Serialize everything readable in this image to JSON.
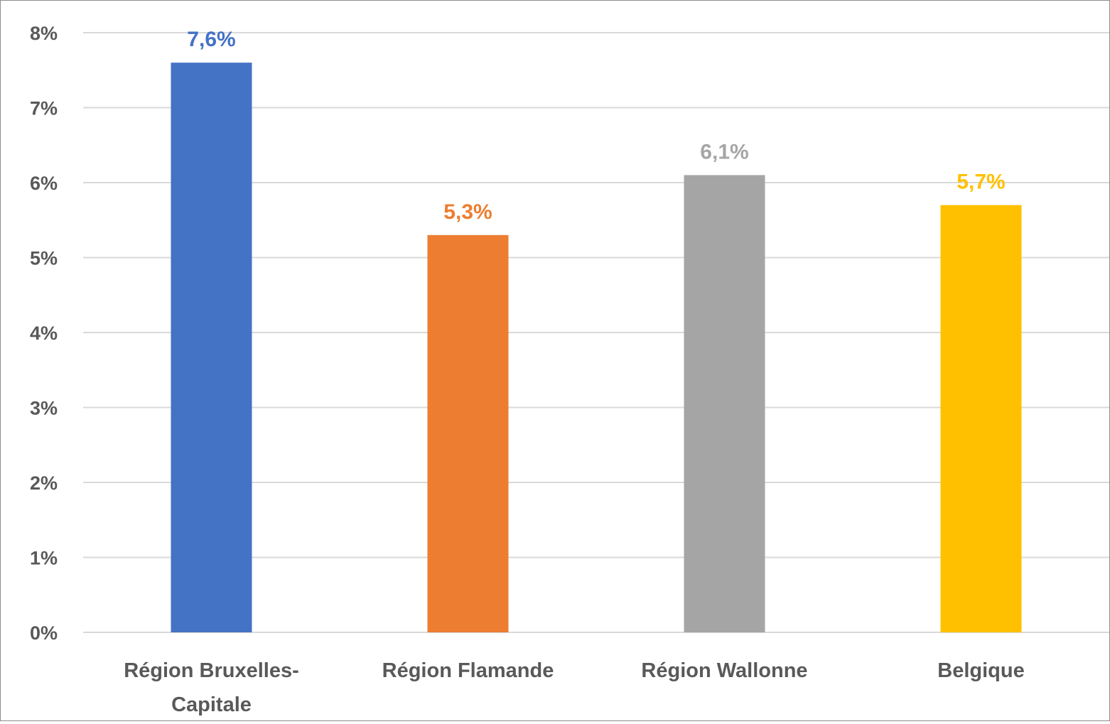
{
  "chart_data": {
    "type": "bar",
    "title": "",
    "xlabel": "",
    "ylabel": "",
    "categories": [
      "Région Bruxelles-Capitale",
      "Région Flamande",
      "Région Wallonne",
      "Belgique"
    ],
    "category_lines": [
      [
        "Région Bruxelles-",
        "Capitale"
      ],
      [
        "Région Flamande"
      ],
      [
        "Région Wallonne"
      ],
      [
        "Belgique"
      ]
    ],
    "values": [
      7.6,
      5.3,
      6.1,
      5.7
    ],
    "data_labels": [
      "7,6%",
      "5,3%",
      "6,1%",
      "5,7%"
    ],
    "colors": [
      "#4472c4",
      "#ed7d31",
      "#a5a5a5",
      "#ffc000"
    ],
    "ylim": [
      0,
      8
    ],
    "yticks": [
      0,
      1,
      2,
      3,
      4,
      5,
      6,
      7,
      8
    ],
    "ytick_labels": [
      "0%",
      "1%",
      "2%",
      "3%",
      "4%",
      "5%",
      "6%",
      "7%",
      "8%"
    ],
    "grid": true,
    "legend": "none"
  }
}
